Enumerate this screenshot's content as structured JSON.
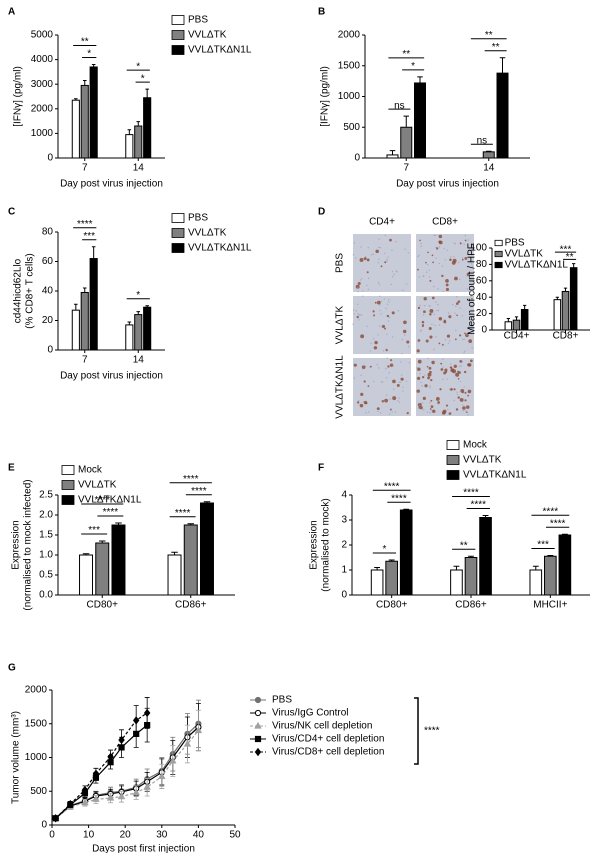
{
  "chart_data": [
    {
      "type": "bar",
      "panel": "A",
      "ylabel": "[IFNγ] (pg/ml)",
      "xlabel": "Day post virus injection",
      "legend": true,
      "categories": [
        "7",
        "14"
      ],
      "ylim": [
        0,
        5000
      ],
      "yticks": [
        0,
        1000,
        2000,
        3000,
        4000,
        5000
      ],
      "series": [
        {
          "name": "PBS",
          "color": "#ffffff",
          "values": [
            2350,
            950
          ],
          "errors": [
            60,
            200
          ]
        },
        {
          "name": "VVLΔTK",
          "color": "#808080",
          "values": [
            2950,
            1300
          ],
          "errors": [
            200,
            180
          ]
        },
        {
          "name": "VVLΔTKΔN1L",
          "color": "#000000",
          "values": [
            3700,
            2450
          ],
          "errors": [
            100,
            350
          ]
        }
      ],
      "annotations": [
        {
          "text": "*",
          "category": 0,
          "series": [
            1,
            2
          ]
        },
        {
          "text": "**",
          "category": 0,
          "series": [
            0,
            2
          ]
        },
        {
          "text": "*",
          "category": 1,
          "series": [
            1,
            2
          ]
        },
        {
          "text": "*",
          "category": 1,
          "series": [
            0,
            2
          ]
        }
      ]
    },
    {
      "type": "bar",
      "panel": "B",
      "ylabel": "[IFNγ] (pg/ml)",
      "xlabel": "Day post virus injection",
      "legend": false,
      "categories": [
        "7",
        "14"
      ],
      "ylim": [
        0,
        2000
      ],
      "yticks": [
        0,
        500,
        1000,
        1500,
        2000
      ],
      "series": [
        {
          "color": "#ffffff",
          "values": [
            50,
            0
          ],
          "errors": [
            70,
            0
          ]
        },
        {
          "color": "#808080",
          "values": [
            500,
            100
          ],
          "errors": [
            180,
            10
          ]
        },
        {
          "color": "#000000",
          "values": [
            1220,
            1380
          ],
          "errors": [
            100,
            250
          ]
        }
      ],
      "annotations": [
        {
          "text": "ns",
          "category": 0,
          "series": [
            0,
            1
          ]
        },
        {
          "text": "*",
          "category": 0,
          "series": [
            1,
            2
          ]
        },
        {
          "text": "**",
          "category": 0,
          "series": [
            0,
            2
          ]
        },
        {
          "text": "ns",
          "category": 1,
          "series": [
            0,
            1
          ]
        },
        {
          "text": "**",
          "category": 1,
          "series": [
            1,
            2
          ]
        },
        {
          "text": "**",
          "category": 1,
          "series": [
            0,
            2
          ]
        }
      ]
    },
    {
      "type": "bar",
      "panel": "C",
      "ylabel": [
        "cd44hicd62Llo",
        "(% CD8+ T cells)"
      ],
      "xlabel": "Day post virus injection",
      "legend": true,
      "categories": [
        "7",
        "14"
      ],
      "ylim": [
        0,
        80
      ],
      "yticks": [
        0,
        20,
        40,
        60,
        80
      ],
      "series": [
        {
          "name": "PBS",
          "color": "#ffffff",
          "values": [
            27,
            17
          ],
          "errors": [
            4,
            2
          ]
        },
        {
          "name": "VVLΔTK",
          "color": "#808080",
          "values": [
            39,
            24
          ],
          "errors": [
            3,
            2
          ]
        },
        {
          "name": "VVLΔTKΔN1L",
          "color": "#000000",
          "values": [
            62,
            29
          ],
          "errors": [
            8,
            1
          ]
        }
      ],
      "annotations": [
        {
          "text": "***",
          "category": 0,
          "series": [
            1,
            2
          ]
        },
        {
          "text": "****",
          "category": 0,
          "series": [
            0,
            2
          ]
        },
        {
          "text": "*",
          "category": 1,
          "series": [
            0,
            2
          ]
        }
      ]
    },
    {
      "type": "bar",
      "panel": "D",
      "ylabel": "Mean of count / HPF",
      "legend": true,
      "micrograph_columns": [
        "CD4+",
        "CD8+"
      ],
      "micrograph_rows": [
        "PBS",
        "VVLΔTK",
        "VVLΔTKΔN1L"
      ],
      "categories": [
        "CD4+",
        "CD8+"
      ],
      "ylim": [
        0,
        100
      ],
      "yticks": [
        0,
        20,
        40,
        60,
        80,
        100
      ],
      "series": [
        {
          "name": "PBS",
          "color": "#ffffff",
          "values": [
            10,
            37
          ],
          "errors": [
            4,
            3
          ]
        },
        {
          "name": "VVLΔTK",
          "color": "#808080",
          "values": [
            12,
            47
          ],
          "errors": [
            4,
            4
          ]
        },
        {
          "name": "VVLΔTKΔN1L",
          "color": "#000000",
          "values": [
            25,
            76
          ],
          "errors": [
            5,
            5
          ]
        }
      ],
      "annotations": [
        {
          "text": "**",
          "category": 1,
          "series": [
            1,
            2
          ]
        },
        {
          "text": "***",
          "category": 1,
          "series": [
            0,
            2
          ]
        }
      ]
    },
    {
      "type": "bar",
      "panel": "E",
      "ylabel": [
        "Expression",
        "(normalised to mock infected)"
      ],
      "legend": true,
      "categories": [
        "CD80+",
        "CD86+"
      ],
      "ylim": [
        0,
        2.5
      ],
      "yticks": [
        {
          "value": 0,
          "label": "0.0"
        },
        0.5,
        {
          "value": 1,
          "label": "1.0"
        },
        1.5,
        {
          "value": 2,
          "label": "2.0"
        },
        2.5
      ],
      "series": [
        {
          "name": "Mock",
          "color": "#ffffff",
          "values": [
            1.0,
            1.0
          ],
          "errors": [
            0.03,
            0.07
          ]
        },
        {
          "name": "VVLΔTK",
          "color": "#808080",
          "values": [
            1.3,
            1.75
          ],
          "errors": [
            0.05,
            0.03
          ]
        },
        {
          "name": "VVLΔTKΔN1L",
          "color": "#000000",
          "values": [
            1.75,
            2.3
          ],
          "errors": [
            0.05,
            0.03
          ]
        }
      ],
      "annotations": [
        {
          "text": "***",
          "category": 0,
          "series": [
            0,
            1
          ]
        },
        {
          "text": "****",
          "category": 0,
          "series": [
            1,
            2
          ]
        },
        {
          "text": "****",
          "category": 0,
          "series": [
            0,
            2
          ]
        },
        {
          "text": "****",
          "category": 1,
          "series": [
            0,
            1
          ]
        },
        {
          "text": "****",
          "category": 1,
          "series": [
            1,
            2
          ]
        },
        {
          "text": "****",
          "category": 1,
          "series": [
            0,
            2
          ]
        }
      ]
    },
    {
      "type": "bar",
      "panel": "F",
      "ylabel": [
        "Expression",
        "(normalised to mock)"
      ],
      "legend": true,
      "categories": [
        "CD80+",
        "CD86+",
        "MHCII+"
      ],
      "ylim": [
        0,
        4
      ],
      "yticks": [
        0,
        1,
        2,
        3,
        4
      ],
      "series": [
        {
          "name": "Mock",
          "color": "#ffffff",
          "values": [
            1.0,
            1.0,
            1.0
          ],
          "errors": [
            0.1,
            0.15,
            0.15
          ]
        },
        {
          "name": "VVLΔTK",
          "color": "#808080",
          "values": [
            1.35,
            1.5,
            1.55
          ],
          "errors": [
            0.05,
            0.05,
            0.03
          ]
        },
        {
          "name": "VVLΔTKΔN1L",
          "color": "#000000",
          "values": [
            3.4,
            3.1,
            2.4
          ],
          "errors": [
            0.03,
            0.08,
            0.03
          ]
        }
      ],
      "annotations": [
        {
          "text": "*",
          "category": 0,
          "series": [
            0,
            1
          ]
        },
        {
          "text": "****",
          "category": 0,
          "series": [
            1,
            2
          ]
        },
        {
          "text": "****",
          "category": 0,
          "series": [
            0,
            2
          ]
        },
        {
          "text": "**",
          "category": 1,
          "series": [
            0,
            1
          ]
        },
        {
          "text": "****",
          "category": 1,
          "series": [
            1,
            2
          ]
        },
        {
          "text": "****",
          "category": 1,
          "series": [
            0,
            2
          ]
        },
        {
          "text": "***",
          "category": 2,
          "series": [
            0,
            1
          ]
        },
        {
          "text": "****",
          "category": 2,
          "series": [
            1,
            2
          ]
        },
        {
          "text": "****",
          "category": 2,
          "series": [
            0,
            2
          ]
        }
      ]
    },
    {
      "type": "line",
      "panel": "G",
      "ylabel": "Tumor volume (mm³)",
      "xlabel": "Days post first injection",
      "legend": true,
      "significance": "****",
      "x": [
        1,
        5,
        9,
        12,
        16,
        19,
        23,
        26,
        30,
        33,
        37,
        40
      ],
      "xlim": [
        0,
        50
      ],
      "xticks": [
        0,
        10,
        20,
        30,
        40,
        50
      ],
      "ylim": [
        0,
        2000
      ],
      "yticks": [
        0,
        500,
        1000,
        1500,
        2000
      ],
      "series": [
        {
          "name": "PBS",
          "color": "#707070",
          "marker": "circle",
          "filled": true,
          "dashed": false,
          "values": [
            100,
            290,
            360,
            440,
            480,
            500,
            560,
            680,
            800,
            1050,
            1350,
            1500
          ],
          "errors": [
            20,
            40,
            50,
            60,
            80,
            100,
            120,
            150,
            200,
            250,
            300,
            350
          ]
        },
        {
          "name": "Virus/IgG Control",
          "color": "#000000",
          "marker": "circle",
          "filled": false,
          "dashed": false,
          "values": [
            100,
            280,
            350,
            430,
            460,
            490,
            540,
            640,
            780,
            1000,
            1300,
            1450
          ],
          "errors": [
            20,
            40,
            50,
            60,
            70,
            90,
            110,
            140,
            200,
            250,
            300,
            350
          ]
        },
        {
          "name": "Virus/NK cell depletion",
          "color": "#a0a0a0",
          "marker": "triangle",
          "filled": true,
          "dashed": true,
          "values": [
            100,
            270,
            330,
            380,
            400,
            420,
            480,
            560,
            720,
            950,
            1200,
            1400
          ],
          "errors": [
            20,
            40,
            50,
            60,
            70,
            80,
            100,
            130,
            180,
            230,
            280,
            300
          ]
        },
        {
          "name": "Virus/CD4+ cell depletion",
          "color": "#000000",
          "marker": "square",
          "filled": true,
          "dashed": false,
          "values": [
            100,
            300,
            470,
            700,
            930,
            1150,
            1350,
            1480,
            null,
            null,
            null,
            null
          ],
          "errors": [
            20,
            40,
            60,
            80,
            100,
            150,
            200,
            250,
            null,
            null,
            null,
            null
          ]
        },
        {
          "name": "Virus/CD8+ cell depletion",
          "color": "#000000",
          "marker": "diamond",
          "filled": true,
          "dashed": true,
          "values": [
            100,
            310,
            520,
            760,
            1010,
            1260,
            1550,
            1660,
            null,
            null,
            null,
            null
          ],
          "errors": [
            20,
            40,
            60,
            80,
            100,
            150,
            220,
            230,
            null,
            null,
            null,
            null
          ]
        }
      ]
    }
  ]
}
